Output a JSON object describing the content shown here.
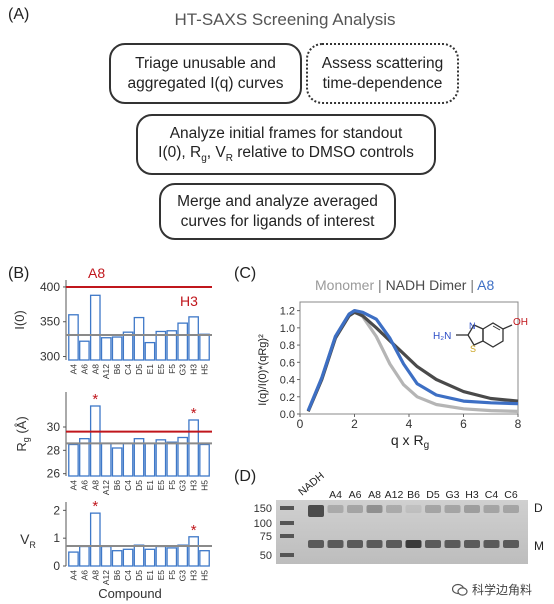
{
  "panelA": {
    "label": "(A)",
    "title": "HT-SAXS Screening Analysis",
    "boxes": {
      "triage": [
        "Triage unusable and",
        "aggregated I(q) curves"
      ],
      "assess": [
        "Assess scattering",
        "time-dependence"
      ],
      "analyze_line1": "Analyze initial frames for standout",
      "analyze_line2_parts": [
        "I(0), R",
        "g",
        ", V",
        "R",
        " relative to DMSO controls"
      ],
      "merge": [
        "Merge and analyze averaged",
        "curves for ligands of interest"
      ]
    }
  },
  "panelB": {
    "label": "(B)",
    "xlabel": "Compound",
    "compounds": [
      "A4",
      "A6",
      "A8",
      "A12",
      "B6",
      "C4",
      "D5",
      "E1",
      "E5",
      "F5",
      "G3",
      "H3",
      "H5"
    ],
    "i0": {
      "ylabel": "I(0)",
      "ticks": [
        300,
        350,
        400
      ],
      "ylim": [
        295,
        410
      ],
      "values": [
        360,
        322,
        388,
        327,
        328,
        335,
        356,
        320,
        336,
        337,
        348,
        357,
        332
      ],
      "reference_line": 331,
      "threshold_line": 400,
      "annotations": {
        "A8": "A8",
        "H3": "H3"
      }
    },
    "rg": {
      "ylabel_main": "R",
      "ylabel_sub": "g",
      "ylabel_unit": " (Å)",
      "ticks": [
        26,
        28,
        30
      ],
      "ylim": [
        25.8,
        33
      ],
      "values": [
        28.5,
        29.0,
        31.8,
        28.6,
        28.2,
        28.6,
        29.0,
        28.6,
        28.9,
        28.7,
        29.1,
        30.6,
        28.5
      ],
      "reference_line": 28.6,
      "threshold_line": 29.6,
      "stars": [
        "A8",
        "H3"
      ]
    },
    "vr": {
      "ylabel_main": "V",
      "ylabel_sub": "R",
      "ticks": [
        0,
        1,
        2
      ],
      "ylim": [
        0,
        2.3
      ],
      "values": [
        0.5,
        0.7,
        1.9,
        0.7,
        0.55,
        0.6,
        0.75,
        0.6,
        0.7,
        0.65,
        0.75,
        1.05,
        0.55
      ],
      "reference_line": 0.72,
      "stars": [
        "A8",
        "H3"
      ]
    },
    "colors": {
      "bar": "#3e78c8",
      "reference": "#8a8a8a",
      "threshold": "#c0161c"
    }
  },
  "panelC": {
    "label": "(C)",
    "legend": {
      "monomer": "Monomer",
      "sep1": " | ",
      "dimer": "NADH Dimer",
      "sep2": " | ",
      "a8": "A8"
    },
    "colors": {
      "monomer": "#b5b5b5",
      "dimer": "#4a4a4a",
      "a8": "#3d6fc4"
    },
    "xlabel_main": "q x R",
    "xlabel_sub": "g",
    "ylabel": "I(q)/I(0)*(qRg)²",
    "xticks": [
      0,
      2,
      4,
      6,
      8
    ],
    "yticks": [
      0.0,
      0.2,
      0.4,
      0.6,
      0.8,
      1.0,
      1.2
    ],
    "xlim": [
      0,
      8
    ],
    "ylim": [
      0,
      1.3
    ],
    "structure": {
      "left_label": "H₂N",
      "right_label": "OH",
      "n_label": "N",
      "s_label": "S"
    },
    "chart_data": {
      "type": "line",
      "series": [
        {
          "name": "Monomer",
          "x": [
            0.3,
            0.8,
            1.3,
            1.8,
            2.0,
            2.3,
            2.8,
            3.3,
            3.8,
            4.3,
            5.0,
            6.0,
            7.0,
            8.0
          ],
          "y": [
            0.04,
            0.42,
            0.9,
            1.16,
            1.2,
            1.13,
            0.9,
            0.58,
            0.34,
            0.2,
            0.11,
            0.06,
            0.04,
            0.03
          ]
        },
        {
          "name": "NADH Dimer",
          "x": [
            0.3,
            0.8,
            1.3,
            1.8,
            2.0,
            2.3,
            2.8,
            3.3,
            3.8,
            4.3,
            5.0,
            6.0,
            7.0,
            8.0
          ],
          "y": [
            0.03,
            0.4,
            0.88,
            1.14,
            1.18,
            1.14,
            1.0,
            0.85,
            0.7,
            0.55,
            0.4,
            0.26,
            0.18,
            0.15
          ]
        },
        {
          "name": "A8",
          "x": [
            0.3,
            0.8,
            1.3,
            1.8,
            2.0,
            2.3,
            2.8,
            3.3,
            3.8,
            4.3,
            5.0,
            6.0,
            7.0,
            8.0
          ],
          "y": [
            0.04,
            0.42,
            0.9,
            1.16,
            1.2,
            1.18,
            1.1,
            0.88,
            0.58,
            0.35,
            0.22,
            0.15,
            0.13,
            0.12
          ]
        }
      ]
    }
  },
  "panelD": {
    "label": "(D)",
    "lanes": [
      "NADH",
      "A4",
      "A6",
      "A8",
      "A12",
      "B6",
      "D5",
      "G3",
      "H3",
      "C4",
      "C6"
    ],
    "markers": [
      "150",
      "100",
      "75",
      "50"
    ],
    "right_labels": {
      "dimer": "D",
      "monomer": "M"
    }
  },
  "watermark": {
    "icon": "wechat-icon",
    "text": "科学边角料"
  }
}
